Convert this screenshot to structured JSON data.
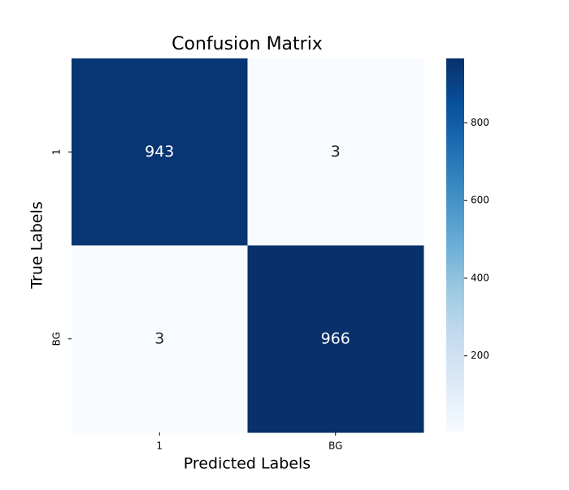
{
  "chart_data": {
    "type": "heatmap",
    "title": "Confusion Matrix",
    "x_label": "Predicted Labels",
    "y_label": "True Labels",
    "x_categories": [
      "1",
      "BG"
    ],
    "y_categories": [
      "1",
      "BG"
    ],
    "values": [
      [
        943,
        3
      ],
      [
        3,
        966
      ]
    ],
    "colormap": "Blues",
    "clim": [
      3,
      966
    ],
    "cticks": [
      200,
      400,
      600,
      800
    ]
  }
}
